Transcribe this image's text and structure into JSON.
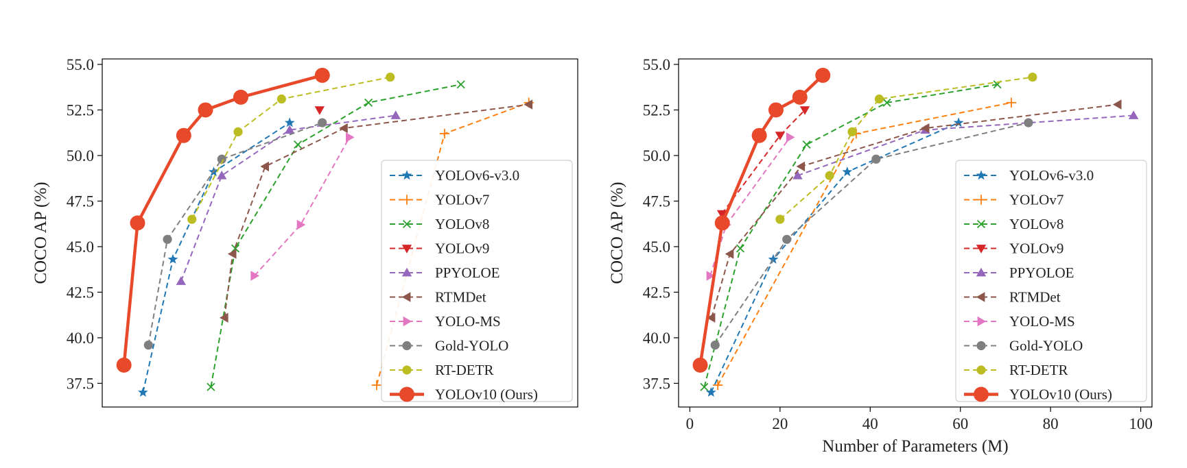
{
  "chart_data": [
    {
      "type": "line",
      "title": "",
      "xlabel": "",
      "ylabel": "COCO AP (%)",
      "x_tick_labels": [],
      "y_ticks": [
        "37.5",
        "40.0",
        "42.5",
        "45.0",
        "47.5",
        "50.0",
        "52.5",
        "55.0"
      ],
      "xlim": [
        0.5,
        18.0
      ],
      "ylim": [
        36.2,
        55.3
      ],
      "grid": false,
      "legend_position": "lower-right",
      "series": [
        {
          "name": "YOLOv6-v3.0",
          "color": "#1f77b4",
          "marker": "star",
          "dashed": true,
          "x": [
            2.0,
            3.1,
            4.6,
            7.4
          ],
          "y": [
            37.0,
            44.3,
            49.1,
            51.8
          ]
        },
        {
          "name": "YOLOv7",
          "color": "#ff7f0e",
          "marker": "plus",
          "dashed": true,
          "x": [
            10.6,
            13.1,
            16.2
          ],
          "y": [
            37.4,
            51.2,
            52.9
          ]
        },
        {
          "name": "YOLOv8",
          "color": "#2ca02c",
          "marker": "x",
          "dashed": true,
          "x": [
            4.5,
            5.4,
            7.7,
            10.3,
            13.7
          ],
          "y": [
            37.3,
            44.9,
            50.6,
            52.9,
            53.9
          ]
        },
        {
          "name": "YOLOv9",
          "color": "#d62728",
          "marker": "triangle-down",
          "dashed": true,
          "x": [
            8.5
          ],
          "y": [
            52.5
          ]
        },
        {
          "name": "PPYOLOE",
          "color": "#9467bd",
          "marker": "triangle-up",
          "dashed": true,
          "x": [
            3.4,
            4.9,
            7.4,
            11.3
          ],
          "y": [
            43.1,
            48.9,
            51.4,
            52.2
          ]
        },
        {
          "name": "RTMDet",
          "color": "#8c564b",
          "marker": "triangle-left",
          "dashed": true,
          "x": [
            5.0,
            5.3,
            6.5,
            9.4,
            16.2
          ],
          "y": [
            41.1,
            44.6,
            49.4,
            51.5,
            52.8
          ]
        },
        {
          "name": "YOLO-MS",
          "color": "#e377c2",
          "marker": "triangle-right",
          "dashed": true,
          "x": [
            6.1,
            7.8,
            9.6
          ],
          "y": [
            43.4,
            46.2,
            51.0
          ]
        },
        {
          "name": "Gold-YOLO",
          "color": "#7f7f7f",
          "marker": "circle",
          "dashed": true,
          "x": [
            2.2,
            2.9,
            4.9,
            8.6
          ],
          "y": [
            39.6,
            45.4,
            49.8,
            51.8
          ]
        },
        {
          "name": "RT-DETR",
          "color": "#bcbd22",
          "marker": "circle",
          "dashed": true,
          "x": [
            3.8,
            5.5,
            7.1,
            11.1
          ],
          "y": [
            46.5,
            51.3,
            53.1,
            54.3
          ]
        },
        {
          "name": "YOLOv10 (Ours)",
          "color": "#e8492a",
          "marker": "circle",
          "dashed": false,
          "x": [
            1.3,
            1.8,
            3.5,
            4.3,
            5.6,
            8.6
          ],
          "y": [
            38.5,
            46.3,
            51.1,
            52.5,
            53.2,
            54.4
          ]
        }
      ]
    },
    {
      "type": "line",
      "title": "",
      "xlabel": "Number of Parameters (M)",
      "ylabel": "COCO AP (%)",
      "x_ticks": [
        "0",
        "20",
        "40",
        "60",
        "80",
        "100"
      ],
      "y_ticks": [
        "37.5",
        "40.0",
        "42.5",
        "45.0",
        "47.5",
        "50.0",
        "52.5",
        "55.0"
      ],
      "xlim": [
        -2.5,
        102.5
      ],
      "ylim": [
        36.2,
        55.3
      ],
      "grid": false,
      "legend_position": "lower-right",
      "series": [
        {
          "name": "YOLOv6-v3.0",
          "color": "#1f77b4",
          "marker": "star",
          "dashed": true,
          "x": [
            4.7,
            18.5,
            34.9,
            59.6
          ],
          "y": [
            37.0,
            44.3,
            49.1,
            51.8
          ]
        },
        {
          "name": "YOLOv7",
          "color": "#ff7f0e",
          "marker": "plus",
          "dashed": true,
          "x": [
            6.2,
            36.9,
            71.3
          ],
          "y": [
            37.4,
            51.2,
            52.9
          ]
        },
        {
          "name": "YOLOv8",
          "color": "#2ca02c",
          "marker": "x",
          "dashed": true,
          "x": [
            3.2,
            11.2,
            25.9,
            43.7,
            68.2
          ],
          "y": [
            37.3,
            44.9,
            50.6,
            52.9,
            53.9
          ]
        },
        {
          "name": "YOLOv9",
          "color": "#d62728",
          "marker": "triangle-down",
          "dashed": true,
          "x": [
            7.1,
            20.0,
            25.5
          ],
          "y": [
            46.8,
            51.1,
            52.5
          ]
        },
        {
          "name": "PPYOLOE",
          "color": "#9467bd",
          "marker": "triangle-up",
          "dashed": true,
          "x": [
            23.9,
            52.2,
            98.4
          ],
          "y": [
            48.9,
            51.4,
            52.2
          ]
        },
        {
          "name": "RTMDet",
          "color": "#8c564b",
          "marker": "triangle-left",
          "dashed": true,
          "x": [
            4.8,
            8.9,
            24.7,
            52.3,
            94.9
          ],
          "y": [
            41.1,
            44.6,
            49.4,
            51.5,
            52.8
          ]
        },
        {
          "name": "YOLO-MS",
          "color": "#e377c2",
          "marker": "triangle-right",
          "dashed": true,
          "x": [
            4.5,
            8.1,
            22.2
          ],
          "y": [
            43.4,
            46.2,
            51.0
          ]
        },
        {
          "name": "Gold-YOLO",
          "color": "#7f7f7f",
          "marker": "circle",
          "dashed": true,
          "x": [
            5.6,
            21.5,
            41.3,
            75.1
          ],
          "y": [
            39.6,
            45.4,
            49.8,
            51.8
          ]
        },
        {
          "name": "RT-DETR",
          "color": "#bcbd22",
          "marker": "circle",
          "dashed": true,
          "x": [
            20.0,
            31.0,
            36.0,
            42.0,
            76.0
          ],
          "y": [
            46.5,
            48.9,
            51.3,
            53.1,
            54.3
          ]
        },
        {
          "name": "YOLOv10 (Ours)",
          "color": "#e8492a",
          "marker": "circle",
          "dashed": false,
          "x": [
            2.3,
            7.2,
            15.4,
            19.1,
            24.4,
            29.5
          ],
          "y": [
            38.5,
            46.3,
            51.1,
            52.5,
            53.2,
            54.4
          ]
        }
      ]
    }
  ]
}
